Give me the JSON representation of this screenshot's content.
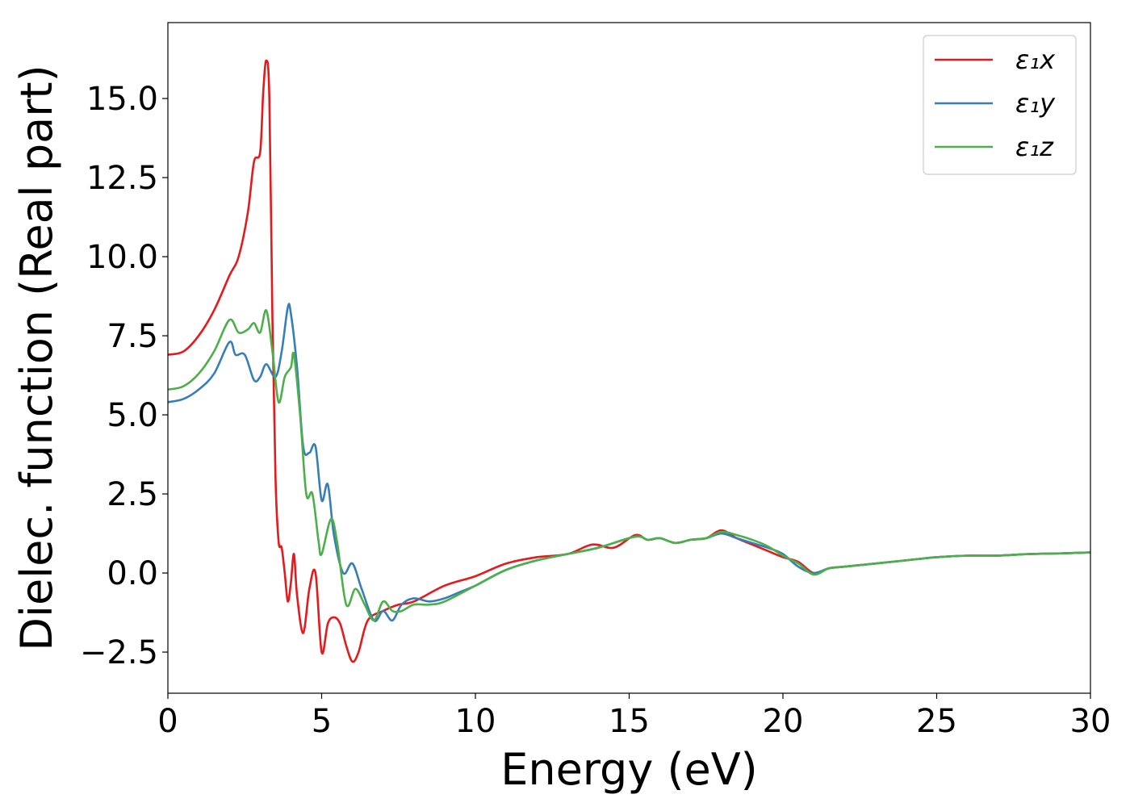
{
  "chart_data": {
    "type": "line",
    "xlabel": "Energy (eV)",
    "ylabel": "Dielec. function (Real part)",
    "xlim": [
      0,
      30
    ],
    "ylim": [
      -3.8,
      17.4
    ],
    "xticks": [
      0,
      5,
      10,
      15,
      20,
      25,
      30
    ],
    "xtick_labels": [
      "0",
      "5",
      "10",
      "15",
      "20",
      "25",
      "30"
    ],
    "yticks": [
      -2.5,
      0,
      2.5,
      5,
      7.5,
      10,
      12.5,
      15
    ],
    "ytick_labels": [
      "−2.5",
      "0.0",
      "2.5",
      "5.0",
      "7.5",
      "10.0",
      "12.5",
      "15.0"
    ],
    "grid": false,
    "legend_position": "top-right",
    "series": [
      {
        "name": "ε₁x",
        "color": "#e41a1c",
        "x": [
          0,
          0.5,
          1,
          1.5,
          2,
          2.3,
          2.6,
          2.8,
          3.0,
          3.1,
          3.2,
          3.3,
          3.4,
          3.5,
          3.6,
          3.7,
          3.8,
          3.9,
          4.0,
          4.1,
          4.2,
          4.4,
          4.6,
          4.8,
          5.0,
          5.2,
          5.4,
          5.6,
          5.8,
          6.0,
          6.2,
          6.5,
          7.0,
          7.5,
          8.0,
          9.0,
          10,
          11,
          12,
          13,
          13.8,
          14.5,
          15.2,
          15.6,
          16,
          16.5,
          17,
          17.5,
          18,
          18.5,
          19,
          19.5,
          20,
          20.5,
          21,
          21.5,
          22,
          23,
          24,
          25,
          26,
          27,
          28,
          29,
          30
        ],
        "y": [
          6.9,
          7.0,
          7.5,
          8.3,
          9.4,
          10.0,
          11.4,
          13.0,
          13.3,
          15.2,
          16.2,
          15.0,
          8.0,
          3.0,
          1.0,
          0.8,
          0.0,
          -0.9,
          -0.3,
          0.6,
          -0.7,
          -1.9,
          -0.5,
          0.0,
          -2.5,
          -1.6,
          -1.4,
          -1.6,
          -2.3,
          -2.8,
          -2.5,
          -1.5,
          -1.2,
          -1.0,
          -0.9,
          -0.4,
          -0.1,
          0.3,
          0.5,
          0.6,
          0.9,
          0.8,
          1.2,
          1.05,
          1.1,
          0.95,
          1.05,
          1.1,
          1.35,
          1.1,
          0.9,
          0.7,
          0.5,
          0.35,
          0.0,
          0.15,
          0.2,
          0.3,
          0.4,
          0.5,
          0.55,
          0.55,
          0.6,
          0.62,
          0.65
        ]
      },
      {
        "name": "ε₁y",
        "color": "#377eb8",
        "x": [
          0,
          0.5,
          1,
          1.5,
          2,
          2.2,
          2.5,
          2.8,
          3.0,
          3.2,
          3.5,
          3.7,
          3.9,
          4.0,
          4.2,
          4.4,
          4.6,
          4.8,
          5.0,
          5.2,
          5.4,
          5.7,
          6.0,
          6.3,
          6.7,
          7.0,
          7.3,
          7.6,
          8.0,
          8.5,
          9.0,
          9.5,
          10,
          11,
          12,
          13,
          14,
          15.2,
          15.6,
          16,
          16.5,
          17,
          17.5,
          18,
          18.5,
          19,
          19.5,
          20,
          20.5,
          21,
          21.5,
          22,
          23,
          24,
          25,
          26,
          27,
          28,
          29,
          30
        ],
        "y": [
          5.4,
          5.5,
          5.8,
          6.3,
          7.3,
          6.9,
          6.9,
          6.1,
          6.2,
          6.6,
          6.2,
          7.0,
          8.4,
          8.2,
          6.5,
          4.0,
          3.8,
          4.0,
          2.3,
          2.8,
          1.2,
          0.0,
          0.3,
          -0.5,
          -1.5,
          -1.2,
          -1.5,
          -1.0,
          -0.8,
          -0.9,
          -0.8,
          -0.6,
          -0.4,
          0.1,
          0.4,
          0.6,
          0.8,
          1.15,
          1.05,
          1.1,
          0.95,
          1.05,
          1.1,
          1.25,
          1.1,
          0.95,
          0.8,
          0.6,
          0.2,
          0.0,
          0.15,
          0.2,
          0.3,
          0.4,
          0.5,
          0.55,
          0.55,
          0.6,
          0.62,
          0.65
        ]
      },
      {
        "name": "ε₁z",
        "color": "#4daf4a",
        "x": [
          0,
          0.5,
          1,
          1.5,
          2,
          2.3,
          2.6,
          2.8,
          3.0,
          3.2,
          3.4,
          3.6,
          3.8,
          4.0,
          4.1,
          4.3,
          4.5,
          4.7,
          4.9,
          5.0,
          5.3,
          5.5,
          5.8,
          6.1,
          6.4,
          6.7,
          7.0,
          7.3,
          7.6,
          8.0,
          8.5,
          9.0,
          10,
          11,
          12,
          13,
          14,
          15.2,
          15.6,
          16,
          16.5,
          17,
          17.5,
          18,
          18.5,
          19,
          19.5,
          20,
          20.5,
          21,
          21.5,
          22,
          23,
          24,
          25,
          26,
          27,
          28,
          29,
          30
        ],
        "y": [
          5.8,
          5.9,
          6.3,
          7.0,
          8.0,
          7.6,
          7.7,
          7.9,
          7.6,
          8.3,
          7.0,
          5.4,
          6.2,
          6.5,
          6.9,
          5.0,
          2.5,
          2.5,
          1.0,
          0.6,
          1.7,
          1.0,
          -1.0,
          -0.5,
          -1.0,
          -1.5,
          -0.9,
          -1.2,
          -1.2,
          -1.0,
          -1.0,
          -0.9,
          -0.4,
          0.1,
          0.4,
          0.6,
          0.8,
          1.15,
          1.05,
          1.1,
          0.95,
          1.05,
          1.1,
          1.3,
          1.2,
          1.05,
          0.85,
          0.55,
          0.3,
          -0.05,
          0.15,
          0.2,
          0.3,
          0.4,
          0.5,
          0.55,
          0.55,
          0.6,
          0.62,
          0.65
        ]
      }
    ]
  }
}
